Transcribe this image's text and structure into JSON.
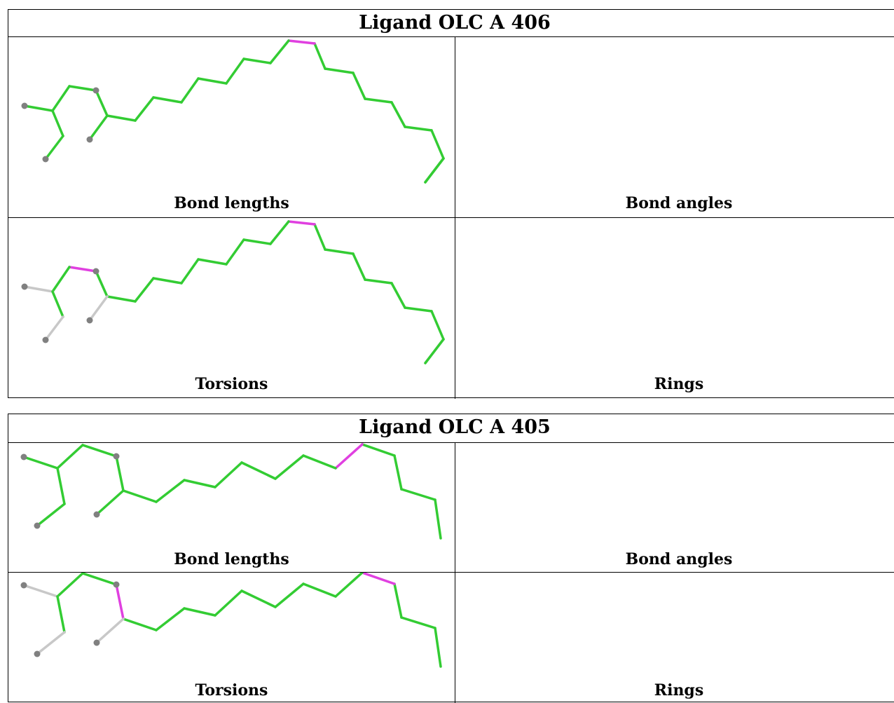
{
  "colors": {
    "ok": "#33cc33",
    "outlier": "#e040e0",
    "na": "#c8c8c8",
    "atom": "#808080"
  },
  "tables": [
    {
      "title": "Ligand OLC A 406",
      "panels": [
        {
          "caption": "Bond lengths",
          "highlight": "bond-outlier"
        },
        {
          "caption": "Bond angles",
          "highlight": "none"
        },
        {
          "caption": "Torsions",
          "highlight": "torsion-outliers"
        },
        {
          "caption": "Rings",
          "highlight": "not-applicable"
        }
      ]
    },
    {
      "title": "Ligand OLC A 405",
      "panels": [
        {
          "caption": "Bond lengths",
          "highlight": "bond-outlier"
        },
        {
          "caption": "Bond angles",
          "highlight": "none"
        },
        {
          "caption": "Torsions",
          "highlight": "torsion-outliers"
        },
        {
          "caption": "Rings",
          "highlight": "not-applicable"
        }
      ]
    }
  ]
}
